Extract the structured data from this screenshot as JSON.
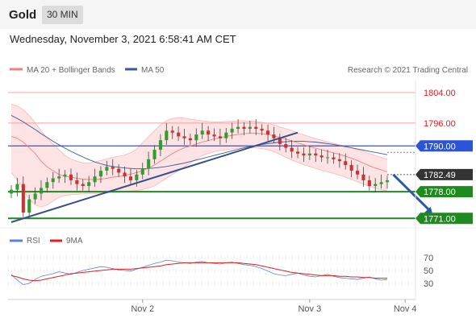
{
  "header": {
    "instrument": "Gold",
    "timeframe": "30 MIN",
    "datetime": "Wednesday, November 3, 2021 6:58:41 AM CET"
  },
  "legend": {
    "ma20": "MA 20 + Bollinger Bands",
    "ma50": "MA 50",
    "credit": "Research © 2021 Trading Central",
    "rsi": "RSI",
    "rsi_ma": "9MA"
  },
  "colors": {
    "resistance": "#e02020",
    "resistance_line": "#f5a0a0",
    "pivot": "#2a55d8",
    "support": "#1f8a1f",
    "current": "#333333",
    "ma20": "#f08080",
    "ma50": "#3a5a9a",
    "band_fill": "#fde3e3",
    "candle_up": "#2f9e2f",
    "candle_down": "#d03030",
    "rsi": "#5a80e0",
    "rsi_ma": "#e02020",
    "arrow": "#2a5aa0"
  },
  "chart_data": [
    {
      "type": "candlestick",
      "title": "Gold 30 MIN",
      "x_tick_labels": [
        "Nov 2",
        "Nov 3",
        "Nov 4"
      ],
      "x_ticks": [
        22,
        50,
        66
      ],
      "ylim": [
        1770,
        1808
      ],
      "levels": [
        {
          "label": "1804.00",
          "value": 1804.0,
          "kind": "resistance"
        },
        {
          "label": "1796.00",
          "value": 1796.0,
          "kind": "resistance"
        },
        {
          "label": "1790.00",
          "value": 1790.0,
          "kind": "pivot"
        },
        {
          "label": "1782.49",
          "value": 1782.49,
          "kind": "current"
        },
        {
          "label": "1778.00",
          "value": 1778.0,
          "kind": "support"
        },
        {
          "label": "1771.00",
          "value": 1771.0,
          "kind": "support"
        }
      ],
      "closes": [
        1778.5,
        1780.0,
        1772.5,
        1776.0,
        1777.5,
        1779.0,
        1780.5,
        1781.5,
        1782.0,
        1782.5,
        1781.0,
        1780.0,
        1779.5,
        1780.5,
        1782.0,
        1783.5,
        1784.5,
        1784.0,
        1783.0,
        1782.0,
        1781.0,
        1782.5,
        1784.0,
        1786.5,
        1789.0,
        1791.5,
        1794.0,
        1793.5,
        1792.5,
        1792.0,
        1791.5,
        1793.0,
        1794.0,
        1793.0,
        1792.5,
        1792.0,
        1793.5,
        1794.5,
        1795.0,
        1794.5,
        1795.0,
        1794.5,
        1794.0,
        1793.0,
        1792.0,
        1790.5,
        1789.5,
        1788.5,
        1788.0,
        1787.5,
        1788.0,
        1787.5,
        1787.0,
        1787.0,
        1786.5,
        1786.0,
        1785.0,
        1783.5,
        1782.5,
        1781.0,
        1779.5,
        1780.0,
        1780.5,
        1781.0
      ],
      "trendline": {
        "from": [
          0,
          1770.0
        ],
        "to": [
          48,
          1793.5
        ]
      },
      "forecast_arrow": {
        "from": [
          64,
          1782.49
        ],
        "to": [
          68,
          1771.5
        ]
      },
      "ma20": [
        1792.5,
        1792.0,
        1791.0,
        1789.5,
        1788.0,
        1786.0,
        1784.5,
        1783.5,
        1782.5,
        1782.0,
        1781.8,
        1781.5,
        1781.3,
        1781.2,
        1781.2,
        1781.3,
        1781.5,
        1781.8,
        1782.0,
        1782.3,
        1782.6,
        1783.0,
        1783.5,
        1784.2,
        1785.0,
        1786.0,
        1787.0,
        1788.0,
        1788.8,
        1789.5,
        1790.0,
        1790.5,
        1791.0,
        1791.4,
        1791.8,
        1792.2,
        1792.5,
        1792.8,
        1793.0,
        1793.2,
        1793.3,
        1793.3,
        1793.2,
        1793.0,
        1792.6,
        1792.2,
        1791.8,
        1791.3,
        1790.8,
        1790.3,
        1789.8,
        1789.4,
        1789.0,
        1788.6,
        1788.2,
        1787.8,
        1787.3,
        1786.8,
        1786.2,
        1785.5,
        1784.8,
        1784.2,
        1783.7,
        1783.2
      ],
      "bb_upper": [
        1801.0,
        1800.5,
        1799.5,
        1798.0,
        1796.0,
        1794.0,
        1792.0,
        1790.5,
        1789.0,
        1787.5,
        1786.5,
        1786.0,
        1785.5,
        1785.5,
        1785.8,
        1786.2,
        1786.6,
        1787.0,
        1787.3,
        1787.6,
        1788.2,
        1789.2,
        1790.8,
        1792.4,
        1794.0,
        1795.5,
        1796.6,
        1797.2,
        1797.4,
        1797.3,
        1797.0,
        1796.8,
        1796.6,
        1796.4,
        1796.3,
        1796.3,
        1796.4,
        1796.5,
        1796.6,
        1796.6,
        1796.5,
        1796.4,
        1796.2,
        1795.9,
        1795.5,
        1795.0,
        1794.5,
        1794.0,
        1793.4,
        1792.9,
        1792.4,
        1791.9,
        1791.5,
        1791.1,
        1790.7,
        1790.3,
        1789.9,
        1789.5,
        1789.0,
        1788.5,
        1788.0,
        1787.5,
        1787.0,
        1786.5
      ],
      "bb_lower": [
        1783.0,
        1781.0,
        1778.5,
        1776.0,
        1774.5,
        1774.0,
        1774.5,
        1775.5,
        1776.5,
        1777.0,
        1777.2,
        1777.3,
        1777.4,
        1777.5,
        1777.5,
        1777.6,
        1777.7,
        1777.8,
        1777.9,
        1778.0,
        1778.2,
        1778.3,
        1778.5,
        1779.0,
        1779.5,
        1780.5,
        1781.5,
        1782.5,
        1783.5,
        1784.5,
        1785.5,
        1786.5,
        1787.5,
        1788.0,
        1788.5,
        1788.8,
        1789.0,
        1789.2,
        1789.4,
        1789.5,
        1789.6,
        1789.5,
        1789.3,
        1789.0,
        1788.5,
        1787.8,
        1787.0,
        1786.3,
        1785.7,
        1785.1,
        1784.6,
        1784.1,
        1783.6,
        1783.2,
        1782.8,
        1782.3,
        1781.8,
        1781.2,
        1780.6,
        1780.0,
        1779.4,
        1778.9,
        1778.5,
        1778.2
      ],
      "ma50": [
        1798.0,
        1797.2,
        1796.3,
        1795.3,
        1794.3,
        1793.2,
        1792.2,
        1791.2,
        1790.3,
        1789.4,
        1788.6,
        1787.8,
        1787.1,
        1786.4,
        1785.8,
        1785.3,
        1784.9,
        1784.6,
        1784.4,
        1784.2,
        1784.1,
        1784.0,
        1784.0,
        1784.1,
        1784.2,
        1784.4,
        1784.6,
        1784.9,
        1785.2,
        1785.5,
        1785.9,
        1786.3,
        1786.7,
        1787.1,
        1787.5,
        1787.9,
        1788.3,
        1788.7,
        1789.1,
        1789.5,
        1789.8,
        1790.1,
        1790.4,
        1790.6,
        1790.8,
        1791.0,
        1791.1,
        1791.2,
        1791.2,
        1791.2,
        1791.1,
        1791.0,
        1790.8,
        1790.6,
        1790.4,
        1790.1,
        1789.8,
        1789.5,
        1789.2,
        1788.9,
        1788.6,
        1788.3,
        1788.0,
        1787.7
      ]
    },
    {
      "type": "line",
      "title": "RSI",
      "y_tick_labels": [
        "70",
        "50",
        "30"
      ],
      "y_ticks": [
        70,
        50,
        30
      ],
      "ylim": [
        10,
        80
      ],
      "series": [
        {
          "name": "RSI",
          "values": [
            44,
            35,
            28,
            30,
            36,
            41,
            43,
            45,
            48,
            46,
            44,
            47,
            50,
            52,
            54,
            56,
            55,
            53,
            51,
            50,
            49,
            52,
            55,
            58,
            61,
            63,
            66,
            65,
            63,
            62,
            61,
            63,
            64,
            62,
            61,
            60,
            62,
            63,
            61,
            59,
            58,
            56,
            53,
            49,
            45,
            43,
            42,
            44,
            46,
            43,
            41,
            40,
            42,
            44,
            41,
            39,
            38,
            37,
            36,
            38,
            40,
            37,
            35,
            36
          ]
        },
        {
          "name": "9MA",
          "values": [
            42,
            40,
            37,
            35,
            34,
            35,
            37,
            39,
            41,
            43,
            45,
            46,
            47,
            48,
            49,
            50,
            51,
            52,
            52,
            52,
            52,
            53,
            54,
            55,
            56,
            57,
            59,
            60,
            61,
            62,
            62,
            62,
            62,
            62,
            62,
            62,
            62,
            62,
            62,
            61,
            60,
            59,
            57,
            55,
            53,
            51,
            49,
            47,
            46,
            45,
            44,
            43,
            42,
            42,
            42,
            41,
            41,
            40,
            40,
            39,
            39,
            38,
            38,
            38
          ]
        }
      ]
    }
  ]
}
